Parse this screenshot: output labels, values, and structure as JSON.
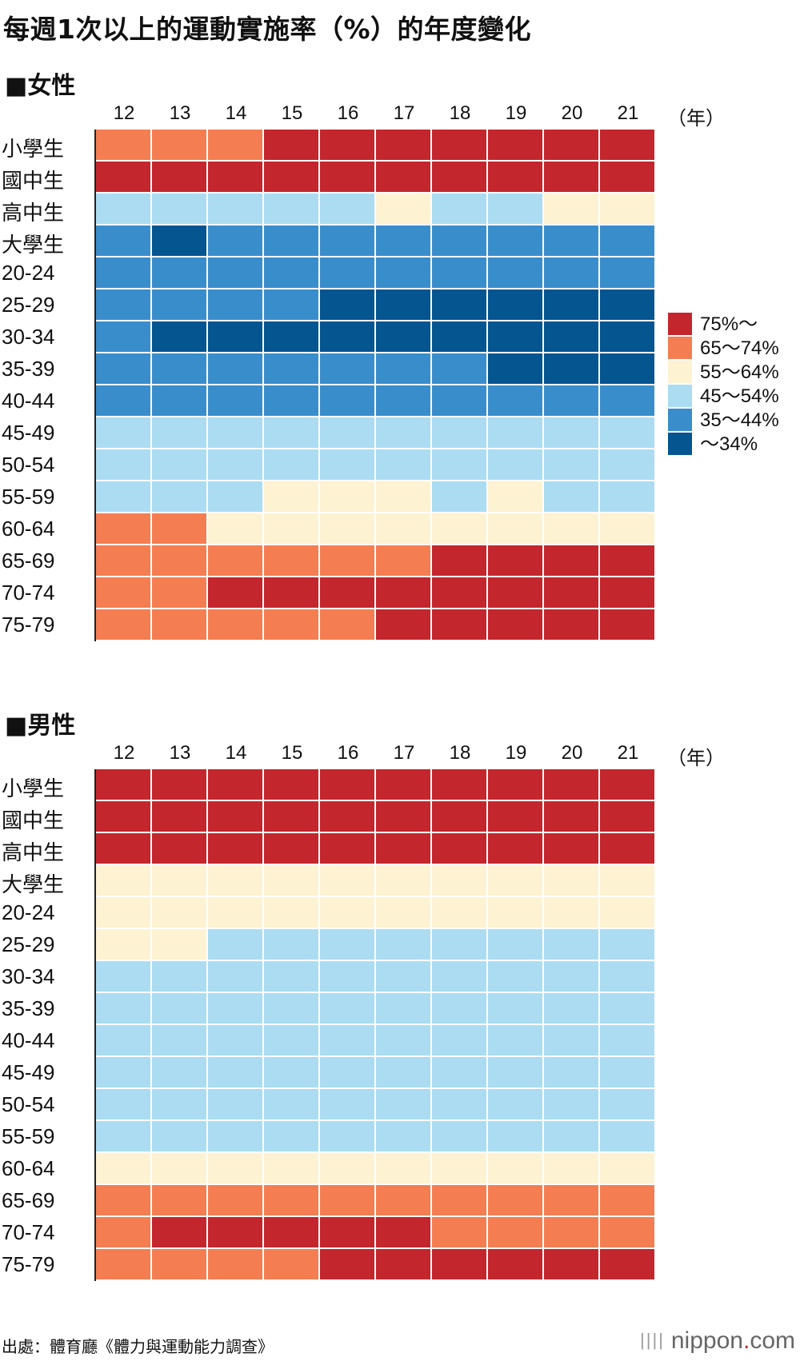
{
  "title": "每週1次以上的運動實施率（%）的年度變化",
  "source": "出處：體育廳《體力與運動能力調查》",
  "brand": {
    "bars": "||||",
    "name": "nippon",
    "dot": ".",
    "suffix": "com"
  },
  "colors": {
    "c75": "#c4262e",
    "c65": "#f47e52",
    "c55": "#fdf2d2",
    "c45": "#abdcf2",
    "c35": "#3a8dcb",
    "c34": "#045590"
  },
  "legend": [
    {
      "key": "c75",
      "label": "75%～"
    },
    {
      "key": "c65",
      "label": "65～74%"
    },
    {
      "key": "c55",
      "label": "55～64%"
    },
    {
      "key": "c45",
      "label": "45～54%"
    },
    {
      "key": "c35",
      "label": "35～44%"
    },
    {
      "key": "c34",
      "label": "～34%"
    }
  ],
  "chart_data": [
    {
      "type": "heatmap",
      "title": "■女性",
      "x_unit": "（年）",
      "x": [
        "12",
        "13",
        "14",
        "15",
        "16",
        "17",
        "18",
        "19",
        "20",
        "21"
      ],
      "y": [
        "小學生",
        "國中生",
        "高中生",
        "大學生",
        "20-24",
        "25-29",
        "30-34",
        "35-39",
        "40-44",
        "45-49",
        "50-54",
        "55-59",
        "60-64",
        "65-69",
        "70-74",
        "75-79"
      ],
      "values": [
        [
          "c65",
          "c65",
          "c65",
          "c75",
          "c75",
          "c75",
          "c75",
          "c75",
          "c75",
          "c75"
        ],
        [
          "c75",
          "c75",
          "c75",
          "c75",
          "c75",
          "c75",
          "c75",
          "c75",
          "c75",
          "c75"
        ],
        [
          "c45",
          "c45",
          "c45",
          "c45",
          "c45",
          "c55",
          "c45",
          "c45",
          "c55",
          "c55"
        ],
        [
          "c35",
          "c34",
          "c35",
          "c35",
          "c35",
          "c35",
          "c35",
          "c35",
          "c35",
          "c35"
        ],
        [
          "c35",
          "c35",
          "c35",
          "c35",
          "c35",
          "c35",
          "c35",
          "c35",
          "c35",
          "c35"
        ],
        [
          "c35",
          "c35",
          "c35",
          "c35",
          "c34",
          "c34",
          "c34",
          "c34",
          "c34",
          "c34"
        ],
        [
          "c35",
          "c34",
          "c34",
          "c34",
          "c34",
          "c34",
          "c34",
          "c34",
          "c34",
          "c34"
        ],
        [
          "c35",
          "c35",
          "c35",
          "c35",
          "c35",
          "c35",
          "c35",
          "c34",
          "c34",
          "c34"
        ],
        [
          "c35",
          "c35",
          "c35",
          "c35",
          "c35",
          "c35",
          "c35",
          "c35",
          "c35",
          "c35"
        ],
        [
          "c45",
          "c45",
          "c45",
          "c45",
          "c45",
          "c45",
          "c45",
          "c45",
          "c45",
          "c45"
        ],
        [
          "c45",
          "c45",
          "c45",
          "c45",
          "c45",
          "c45",
          "c45",
          "c45",
          "c45",
          "c45"
        ],
        [
          "c45",
          "c45",
          "c45",
          "c55",
          "c55",
          "c55",
          "c45",
          "c55",
          "c45",
          "c45"
        ],
        [
          "c65",
          "c65",
          "c55",
          "c55",
          "c55",
          "c55",
          "c55",
          "c55",
          "c55",
          "c55"
        ],
        [
          "c65",
          "c65",
          "c65",
          "c65",
          "c65",
          "c65",
          "c75",
          "c75",
          "c75",
          "c75"
        ],
        [
          "c65",
          "c65",
          "c75",
          "c75",
          "c75",
          "c75",
          "c75",
          "c75",
          "c75",
          "c75"
        ],
        [
          "c65",
          "c65",
          "c65",
          "c65",
          "c65",
          "c75",
          "c75",
          "c75",
          "c75",
          "c75"
        ]
      ]
    },
    {
      "type": "heatmap",
      "title": "■男性",
      "x_unit": "（年）",
      "x": [
        "12",
        "13",
        "14",
        "15",
        "16",
        "17",
        "18",
        "19",
        "20",
        "21"
      ],
      "y": [
        "小學生",
        "國中生",
        "高中生",
        "大學生",
        "20-24",
        "25-29",
        "30-34",
        "35-39",
        "40-44",
        "45-49",
        "50-54",
        "55-59",
        "60-64",
        "65-69",
        "70-74",
        "75-79"
      ],
      "values": [
        [
          "c75",
          "c75",
          "c75",
          "c75",
          "c75",
          "c75",
          "c75",
          "c75",
          "c75",
          "c75"
        ],
        [
          "c75",
          "c75",
          "c75",
          "c75",
          "c75",
          "c75",
          "c75",
          "c75",
          "c75",
          "c75"
        ],
        [
          "c75",
          "c75",
          "c75",
          "c75",
          "c75",
          "c75",
          "c75",
          "c75",
          "c75",
          "c75"
        ],
        [
          "c55",
          "c55",
          "c55",
          "c55",
          "c55",
          "c55",
          "c55",
          "c55",
          "c55",
          "c55"
        ],
        [
          "c55",
          "c55",
          "c55",
          "c55",
          "c55",
          "c55",
          "c55",
          "c55",
          "c55",
          "c55"
        ],
        [
          "c55",
          "c55",
          "c45",
          "c45",
          "c45",
          "c45",
          "c45",
          "c45",
          "c45",
          "c45"
        ],
        [
          "c45",
          "c45",
          "c45",
          "c45",
          "c45",
          "c45",
          "c45",
          "c45",
          "c45",
          "c45"
        ],
        [
          "c45",
          "c45",
          "c45",
          "c45",
          "c45",
          "c45",
          "c45",
          "c45",
          "c45",
          "c45"
        ],
        [
          "c45",
          "c45",
          "c45",
          "c45",
          "c45",
          "c45",
          "c45",
          "c45",
          "c45",
          "c45"
        ],
        [
          "c45",
          "c45",
          "c45",
          "c45",
          "c45",
          "c45",
          "c45",
          "c45",
          "c45",
          "c45"
        ],
        [
          "c45",
          "c45",
          "c45",
          "c45",
          "c45",
          "c45",
          "c45",
          "c45",
          "c45",
          "c45"
        ],
        [
          "c45",
          "c45",
          "c45",
          "c45",
          "c45",
          "c45",
          "c45",
          "c45",
          "c45",
          "c45"
        ],
        [
          "c55",
          "c55",
          "c55",
          "c55",
          "c55",
          "c55",
          "c55",
          "c55",
          "c55",
          "c55"
        ],
        [
          "c65",
          "c65",
          "c65",
          "c65",
          "c65",
          "c65",
          "c65",
          "c65",
          "c65",
          "c65"
        ],
        [
          "c65",
          "c75",
          "c75",
          "c75",
          "c75",
          "c75",
          "c65",
          "c65",
          "c65",
          "c65"
        ],
        [
          "c65",
          "c65",
          "c65",
          "c65",
          "c75",
          "c75",
          "c75",
          "c75",
          "c75",
          "c75"
        ]
      ]
    }
  ]
}
